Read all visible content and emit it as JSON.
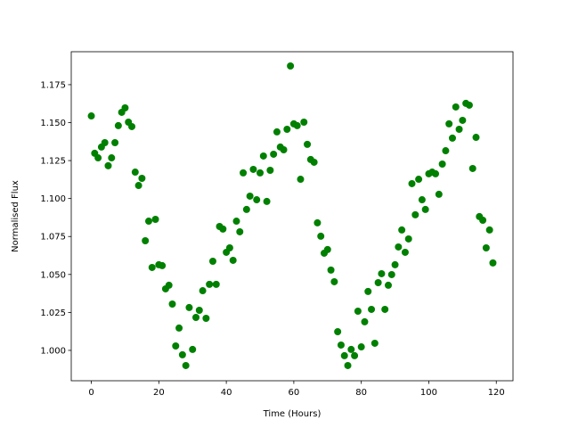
{
  "chart_data": {
    "type": "scatter",
    "xlabel": "Time (Hours)",
    "ylabel": "Normalised Flux",
    "color": "#008000",
    "x": [
      0,
      1,
      2,
      3,
      4,
      5,
      6,
      7,
      8,
      9,
      10,
      11,
      12,
      13,
      14,
      15,
      16,
      17,
      18,
      19,
      20,
      21,
      22,
      23,
      24,
      25,
      26,
      27,
      28,
      29,
      30,
      31,
      32,
      33,
      34,
      35,
      36,
      37,
      38,
      39,
      40,
      41,
      42,
      43,
      44,
      45,
      46,
      47,
      48,
      49,
      50,
      51,
      52,
      53,
      54,
      55,
      56,
      57,
      58,
      59,
      60,
      61,
      62,
      63,
      64,
      65,
      66,
      67,
      68,
      69,
      70,
      71,
      72,
      73,
      74,
      75,
      76,
      77,
      78,
      79,
      80,
      81,
      82,
      83,
      84,
      85,
      86,
      87,
      88,
      89,
      90,
      91,
      92,
      93,
      94,
      95,
      96,
      97,
      98,
      99,
      100,
      101,
      102,
      103,
      104,
      105,
      106,
      107,
      108,
      109,
      110,
      111,
      112,
      113,
      114,
      115,
      116,
      117,
      118,
      119
    ],
    "values": [
      1.1544,
      1.1298,
      1.1268,
      1.1339,
      1.1368,
      1.1216,
      1.1268,
      1.1368,
      1.148,
      1.1568,
      1.1597,
      1.1503,
      1.1474,
      1.1174,
      1.1086,
      1.1133,
      1.0722,
      1.0851,
      1.0546,
      1.0863,
      1.0564,
      1.0558,
      1.0405,
      1.0429,
      1.0305,
      1.0029,
      1.0147,
      0.9971,
      0.99,
      1.0282,
      1.0006,
      1.0217,
      1.0264,
      1.0393,
      1.0211,
      1.0435,
      1.0587,
      1.0435,
      1.0816,
      1.0799,
      1.0646,
      1.0675,
      1.0593,
      1.0851,
      1.0781,
      1.1169,
      1.0928,
      1.1016,
      1.1192,
      1.0992,
      1.1169,
      1.128,
      1.0981,
      1.1186,
      1.1292,
      1.1439,
      1.1339,
      1.1321,
      1.1456,
      1.1873,
      1.1492,
      1.148,
      1.1127,
      1.1503,
      1.1357,
      1.1257,
      1.1239,
      1.084,
      1.0752,
      1.064,
      1.0664,
      1.0529,
      1.0452,
      1.0123,
      1.0035,
      0.9965,
      0.99,
      1.0006,
      0.9965,
      1.0258,
      1.0023,
      1.0188,
      1.0388,
      1.027,
      1.0047,
      1.0446,
      1.0505,
      1.027,
      1.0429,
      1.0499,
      1.0564,
      1.0681,
      1.0793,
      1.0646,
      1.0734,
      1.1098,
      1.0893,
      1.1127,
      1.0992,
      1.0928,
      1.1163,
      1.1174,
      1.1163,
      1.1028,
      1.1227,
      1.1315,
      1.1492,
      1.1398,
      1.1603,
      1.1456,
      1.1515,
      1.1627,
      1.1615,
      1.1198,
      1.1403,
      1.0881,
      1.0857,
      1.0675,
      1.0793,
      1.0576
    ],
    "xlim": [
      -5.95,
      124.95
    ],
    "xticks": [
      0,
      20,
      40,
      60,
      80,
      100,
      120
    ],
    "ylim": [
      0.98,
      1.1967
    ],
    "yticks": [
      {
        "value": 1.0,
        "label": "1.000"
      },
      {
        "value": 1.025,
        "label": "1.025"
      },
      {
        "value": 1.05,
        "label": "1.050"
      },
      {
        "value": 1.075,
        "label": "1.075"
      },
      {
        "value": 1.1,
        "label": "1.100"
      },
      {
        "value": 1.125,
        "label": "1.125"
      },
      {
        "value": 1.15,
        "label": "1.150"
      },
      {
        "value": 1.175,
        "label": "1.175"
      }
    ],
    "grid": false
  }
}
